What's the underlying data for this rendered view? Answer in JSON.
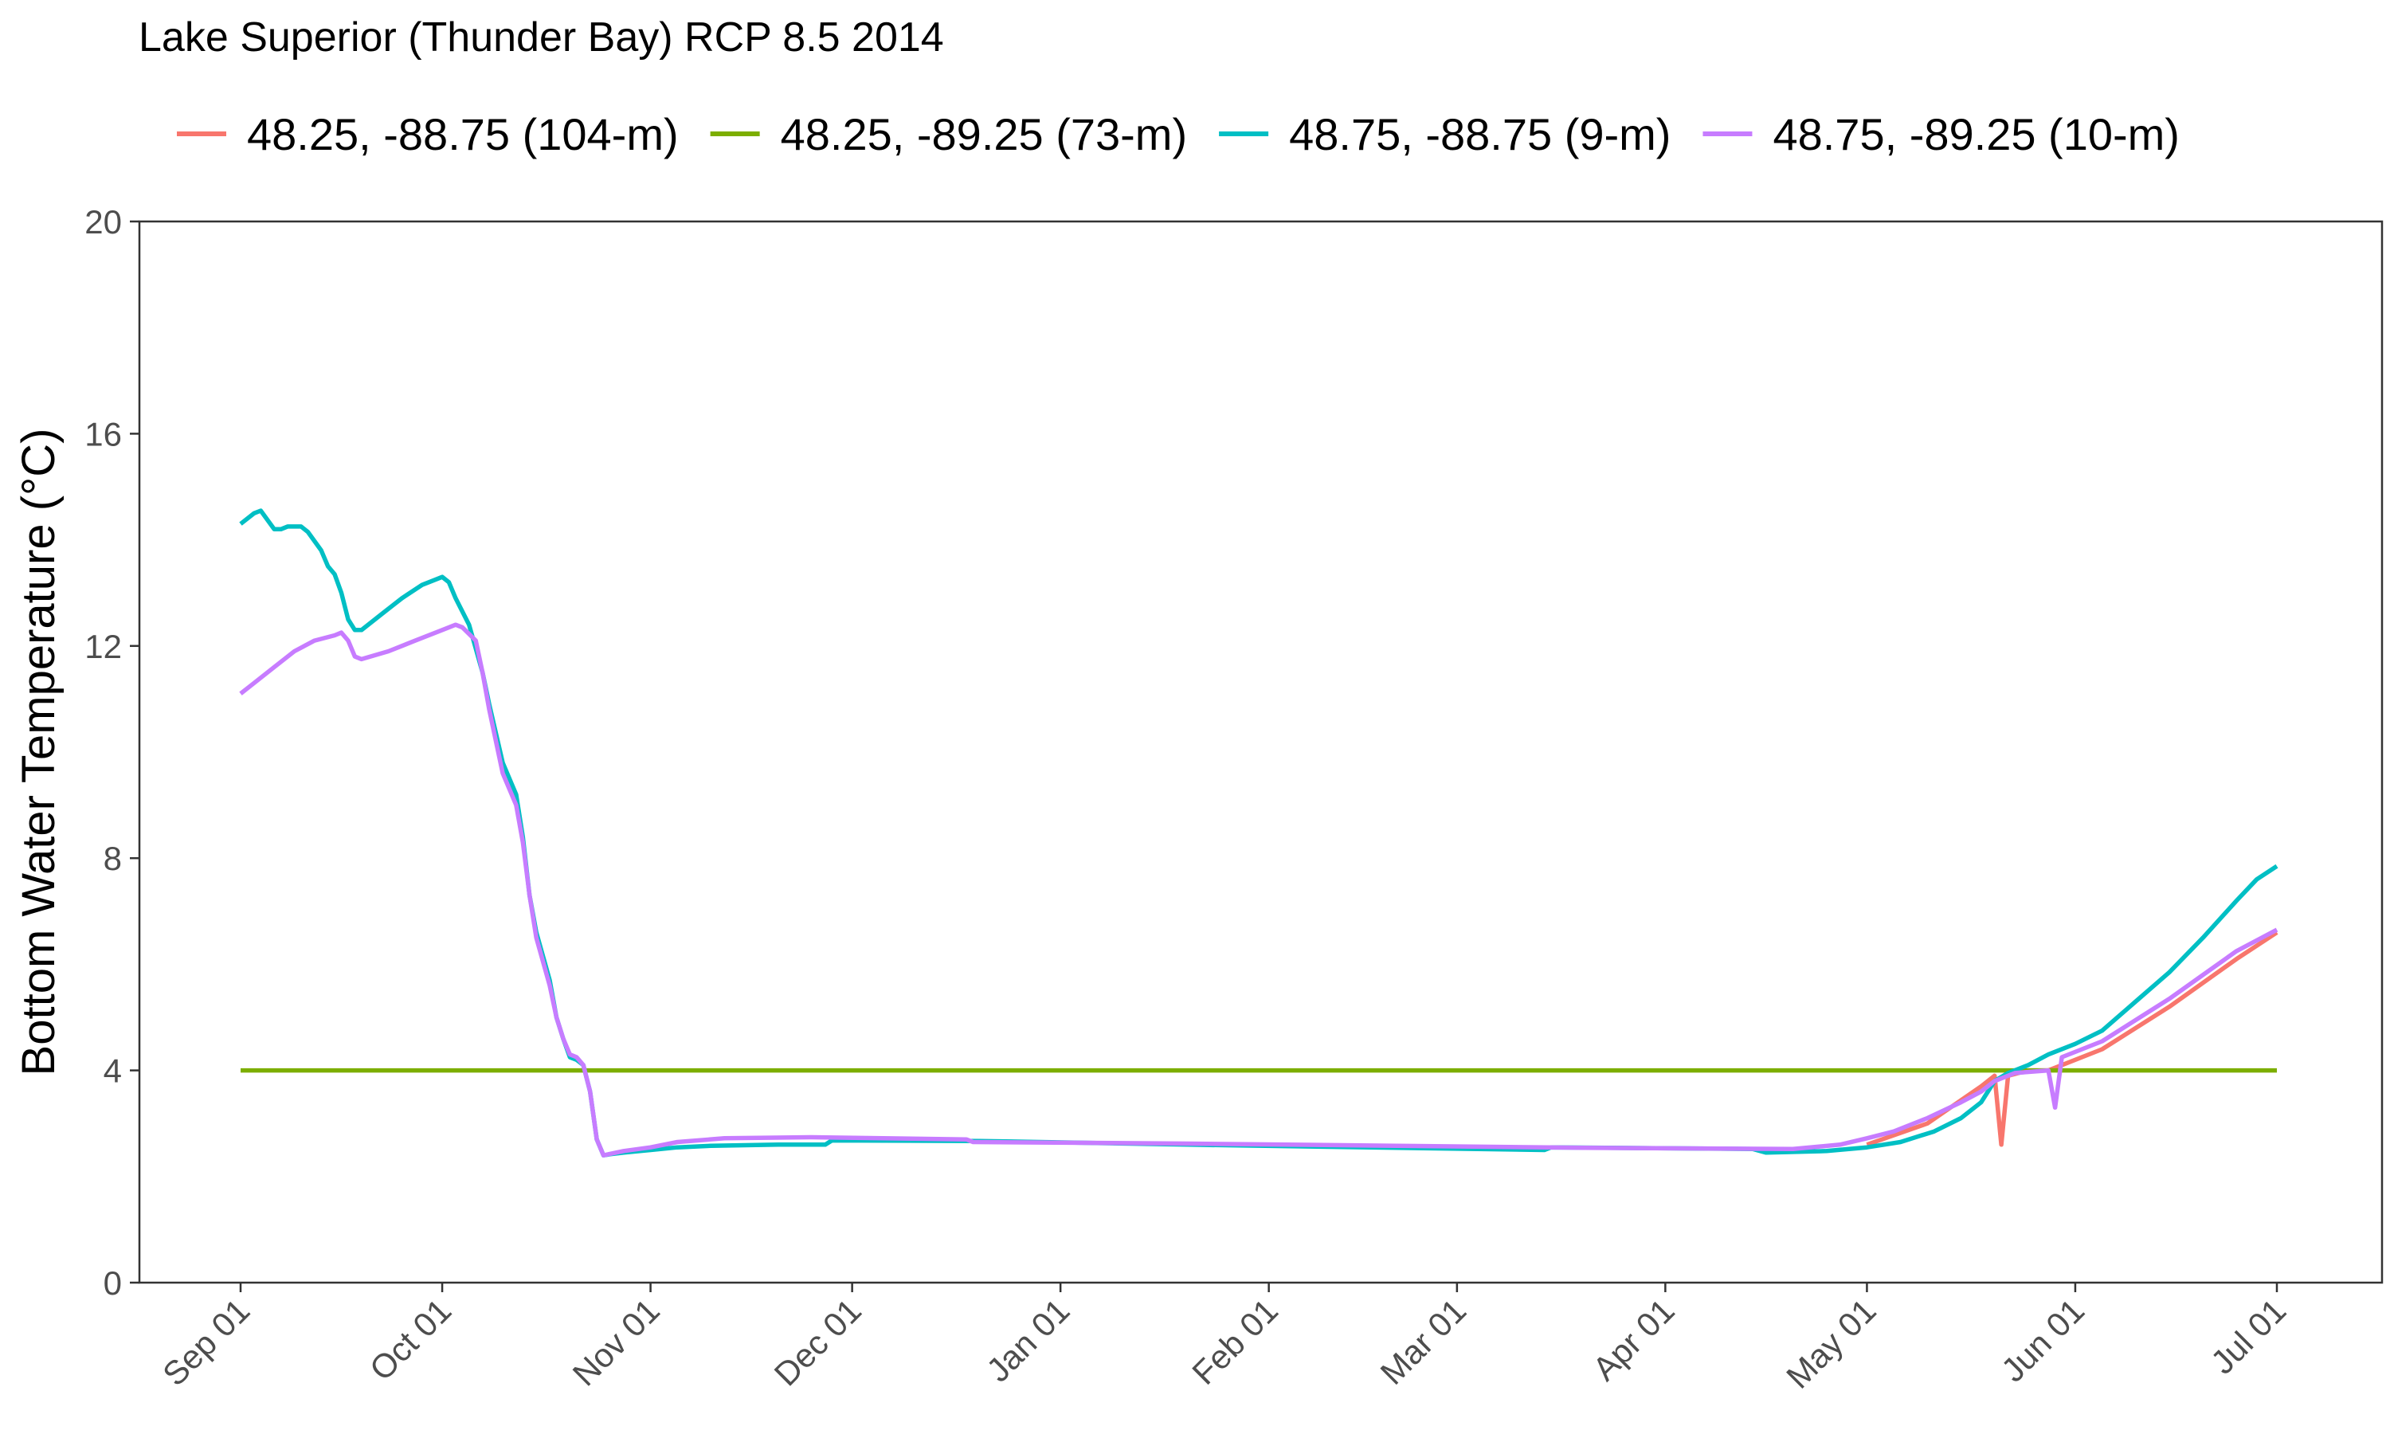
{
  "chart_data": {
    "type": "line",
    "title": "Lake Superior (Thunder Bay) RCP 8.5 2014",
    "xlabel": "",
    "ylabel": "Bottom Water Temperature (°C)",
    "ylim": [
      0,
      20
    ],
    "xlim": [
      "2014-09-01",
      "2015-07-01"
    ],
    "y_ticks": [
      0,
      4,
      8,
      12,
      16,
      20
    ],
    "x_ticks": [
      {
        "date": "2014-09-01",
        "label": "Sep 01"
      },
      {
        "date": "2014-10-01",
        "label": "Oct 01"
      },
      {
        "date": "2014-11-01",
        "label": "Nov 01"
      },
      {
        "date": "2014-12-01",
        "label": "Dec 01"
      },
      {
        "date": "2015-01-01",
        "label": "Jan 01"
      },
      {
        "date": "2015-02-01",
        "label": "Feb 01"
      },
      {
        "date": "2015-03-01",
        "label": "Mar 01"
      },
      {
        "date": "2015-04-01",
        "label": "Apr 01"
      },
      {
        "date": "2015-05-01",
        "label": "May 01"
      },
      {
        "date": "2015-06-01",
        "label": "Jun 01"
      },
      {
        "date": "2015-07-01",
        "label": "Jul 01"
      }
    ],
    "grid": false,
    "legend_position": "top",
    "series": [
      {
        "name": "48.25, -88.75 (104-m)",
        "color": "#F8766D",
        "points": [
          [
            "2015-05-01",
            2.6
          ],
          [
            "2015-05-10",
            3.0
          ],
          [
            "2015-05-18",
            3.7
          ],
          [
            "2015-05-20",
            3.9
          ],
          [
            "2015-05-21",
            2.6
          ],
          [
            "2015-05-22",
            3.9
          ],
          [
            "2015-05-25",
            4.0
          ],
          [
            "2015-05-28",
            4.0
          ],
          [
            "2015-05-30",
            4.1
          ],
          [
            "2015-06-05",
            4.4
          ],
          [
            "2015-06-15",
            5.2
          ],
          [
            "2015-06-25",
            6.1
          ],
          [
            "2015-07-01",
            6.6
          ]
        ]
      },
      {
        "name": "48.25, -89.25 (73-m)",
        "color": "#7CAE00",
        "points": [
          [
            "2014-09-01",
            4.0
          ],
          [
            "2015-07-01",
            4.0
          ]
        ]
      },
      {
        "name": "48.75, -88.75 (9-m)",
        "color": "#00BFC4",
        "points": [
          [
            "2014-09-01",
            14.3
          ],
          [
            "2014-09-03",
            14.5
          ],
          [
            "2014-09-04",
            14.55
          ],
          [
            "2014-09-06",
            14.2
          ],
          [
            "2014-09-07",
            14.2
          ],
          [
            "2014-09-08",
            14.25
          ],
          [
            "2014-09-10",
            14.25
          ],
          [
            "2014-09-11",
            14.15
          ],
          [
            "2014-09-13",
            13.8
          ],
          [
            "2014-09-14",
            13.5
          ],
          [
            "2014-09-15",
            13.35
          ],
          [
            "2014-09-16",
            13.0
          ],
          [
            "2014-09-17",
            12.5
          ],
          [
            "2014-09-18",
            12.3
          ],
          [
            "2014-09-19",
            12.3
          ],
          [
            "2014-09-22",
            12.6
          ],
          [
            "2014-09-25",
            12.9
          ],
          [
            "2014-09-28",
            13.15
          ],
          [
            "2014-09-30",
            13.25
          ],
          [
            "2014-10-01",
            13.3
          ],
          [
            "2014-10-02",
            13.2
          ],
          [
            "2014-10-03",
            12.9
          ],
          [
            "2014-10-05",
            12.4
          ],
          [
            "2014-10-07",
            11.5
          ],
          [
            "2014-10-08",
            10.9
          ],
          [
            "2014-10-10",
            9.8
          ],
          [
            "2014-10-12",
            9.2
          ],
          [
            "2014-10-13",
            8.4
          ],
          [
            "2014-10-14",
            7.3
          ],
          [
            "2014-10-15",
            6.6
          ],
          [
            "2014-10-17",
            5.7
          ],
          [
            "2014-10-18",
            5.0
          ],
          [
            "2014-10-19",
            4.6
          ],
          [
            "2014-10-20",
            4.25
          ],
          [
            "2014-10-21",
            4.2
          ],
          [
            "2014-10-22",
            4.1
          ],
          [
            "2014-10-23",
            3.6
          ],
          [
            "2014-10-24",
            2.7
          ],
          [
            "2014-10-25",
            2.4
          ],
          [
            "2014-10-26",
            2.42
          ],
          [
            "2014-10-28",
            2.45
          ],
          [
            "2014-11-01",
            2.5
          ],
          [
            "2014-11-05",
            2.55
          ],
          [
            "2014-11-10",
            2.58
          ],
          [
            "2014-11-20",
            2.6
          ],
          [
            "2014-11-27",
            2.6
          ],
          [
            "2014-11-28",
            2.68
          ],
          [
            "2014-12-20",
            2.67
          ],
          [
            "2015-01-20",
            2.6
          ],
          [
            "2015-02-20",
            2.54
          ],
          [
            "2015-03-14",
            2.5
          ],
          [
            "2015-03-15",
            2.55
          ],
          [
            "2015-04-14",
            2.52
          ],
          [
            "2015-04-16",
            2.45
          ],
          [
            "2015-04-25",
            2.48
          ],
          [
            "2015-05-01",
            2.55
          ],
          [
            "2015-05-06",
            2.65
          ],
          [
            "2015-05-11",
            2.85
          ],
          [
            "2015-05-15",
            3.1
          ],
          [
            "2015-05-18",
            3.4
          ],
          [
            "2015-05-20",
            3.8
          ],
          [
            "2015-05-22",
            3.95
          ],
          [
            "2015-05-25",
            4.1
          ],
          [
            "2015-05-28",
            4.3
          ],
          [
            "2015-06-01",
            4.5
          ],
          [
            "2015-06-05",
            4.75
          ],
          [
            "2015-06-10",
            5.3
          ],
          [
            "2015-06-15",
            5.85
          ],
          [
            "2015-06-20",
            6.5
          ],
          [
            "2015-06-25",
            7.2
          ],
          [
            "2015-06-28",
            7.6
          ],
          [
            "2015-07-01",
            7.85
          ]
        ]
      },
      {
        "name": "48.75, -89.25 (10-m)",
        "color": "#C77CFF",
        "points": [
          [
            "2014-09-01",
            11.1
          ],
          [
            "2014-09-03",
            11.3
          ],
          [
            "2014-09-06",
            11.6
          ],
          [
            "2014-09-09",
            11.9
          ],
          [
            "2014-09-12",
            12.1
          ],
          [
            "2014-09-15",
            12.2
          ],
          [
            "2014-09-16",
            12.25
          ],
          [
            "2014-09-17",
            12.1
          ],
          [
            "2014-09-18",
            11.8
          ],
          [
            "2014-09-19",
            11.75
          ],
          [
            "2014-09-23",
            11.9
          ],
          [
            "2014-09-27",
            12.1
          ],
          [
            "2014-10-01",
            12.3
          ],
          [
            "2014-10-03",
            12.4
          ],
          [
            "2014-10-04",
            12.35
          ],
          [
            "2014-10-06",
            12.1
          ],
          [
            "2014-10-07",
            11.5
          ],
          [
            "2014-10-08",
            10.8
          ],
          [
            "2014-10-10",
            9.6
          ],
          [
            "2014-10-12",
            9.0
          ],
          [
            "2014-10-13",
            8.3
          ],
          [
            "2014-10-14",
            7.3
          ],
          [
            "2014-10-15",
            6.5
          ],
          [
            "2014-10-17",
            5.6
          ],
          [
            "2014-10-18",
            5.0
          ],
          [
            "2014-10-19",
            4.6
          ],
          [
            "2014-10-20",
            4.3
          ],
          [
            "2014-10-21",
            4.25
          ],
          [
            "2014-10-22",
            4.1
          ],
          [
            "2014-10-23",
            3.6
          ],
          [
            "2014-10-24",
            2.7
          ],
          [
            "2014-10-25",
            2.4
          ],
          [
            "2014-10-28",
            2.48
          ],
          [
            "2014-11-01",
            2.55
          ],
          [
            "2014-11-05",
            2.65
          ],
          [
            "2014-11-12",
            2.72
          ],
          [
            "2014-11-25",
            2.74
          ],
          [
            "2014-12-18",
            2.7
          ],
          [
            "2014-12-19",
            2.65
          ],
          [
            "2015-01-20",
            2.62
          ],
          [
            "2015-02-20",
            2.58
          ],
          [
            "2015-03-20",
            2.54
          ],
          [
            "2015-04-20",
            2.52
          ],
          [
            "2015-04-27",
            2.6
          ],
          [
            "2015-05-01",
            2.72
          ],
          [
            "2015-05-05",
            2.85
          ],
          [
            "2015-05-10",
            3.1
          ],
          [
            "2015-05-15",
            3.4
          ],
          [
            "2015-05-18",
            3.6
          ],
          [
            "2015-05-20",
            3.8
          ],
          [
            "2015-05-23",
            3.95
          ],
          [
            "2015-05-28",
            4.0
          ],
          [
            "2015-05-29",
            3.3
          ],
          [
            "2015-05-30",
            4.25
          ],
          [
            "2015-06-05",
            4.55
          ],
          [
            "2015-06-10",
            4.95
          ],
          [
            "2015-06-15",
            5.35
          ],
          [
            "2015-06-20",
            5.8
          ],
          [
            "2015-06-25",
            6.25
          ],
          [
            "2015-07-01",
            6.65
          ]
        ]
      }
    ]
  }
}
